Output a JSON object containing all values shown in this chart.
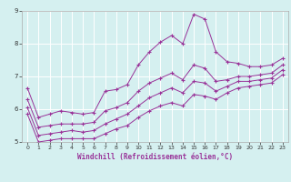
{
  "xlabel": "Windchill (Refroidissement éolien,°C)",
  "bg_color": "#d5f0f0",
  "line_color": "#993399",
  "grid_color": "#ffffff",
  "xlim": [
    -0.5,
    23.5
  ],
  "ylim": [
    5,
    9
  ],
  "yticks": [
    5,
    6,
    7,
    8,
    9
  ],
  "xticks": [
    0,
    1,
    2,
    3,
    4,
    5,
    6,
    7,
    8,
    9,
    10,
    11,
    12,
    13,
    14,
    15,
    16,
    17,
    18,
    19,
    20,
    21,
    22,
    23
  ],
  "lines": [
    {
      "x": [
        0,
        1,
        2,
        3,
        4,
        5,
        6,
        7,
        8,
        9,
        10,
        11,
        12,
        13,
        14,
        15,
        16,
        17,
        18,
        19,
        20,
        21,
        22,
        23
      ],
      "y": [
        6.65,
        5.75,
        5.85,
        5.95,
        5.9,
        5.85,
        5.9,
        6.55,
        6.6,
        6.75,
        7.35,
        7.75,
        8.05,
        8.25,
        8.0,
        8.9,
        8.75,
        7.75,
        7.45,
        7.4,
        7.3,
        7.3,
        7.35,
        7.55
      ]
    },
    {
      "x": [
        0,
        1,
        2,
        3,
        4,
        5,
        6,
        7,
        8,
        9,
        10,
        11,
        12,
        13,
        14,
        15,
        16,
        17,
        18,
        19,
        20,
        21,
        22,
        23
      ],
      "y": [
        6.3,
        5.45,
        5.5,
        5.55,
        5.55,
        5.55,
        5.6,
        5.95,
        6.05,
        6.2,
        6.55,
        6.8,
        6.95,
        7.1,
        6.9,
        7.35,
        7.25,
        6.85,
        6.9,
        7.0,
        7.0,
        7.05,
        7.1,
        7.35
      ]
    },
    {
      "x": [
        0,
        1,
        2,
        3,
        4,
        5,
        6,
        7,
        8,
        9,
        10,
        11,
        12,
        13,
        14,
        15,
        16,
        17,
        18,
        19,
        20,
        21,
        22,
        23
      ],
      "y": [
        6.05,
        5.2,
        5.25,
        5.3,
        5.35,
        5.3,
        5.35,
        5.55,
        5.7,
        5.85,
        6.1,
        6.35,
        6.5,
        6.65,
        6.5,
        6.85,
        6.8,
        6.55,
        6.7,
        6.85,
        6.85,
        6.9,
        6.95,
        7.2
      ]
    },
    {
      "x": [
        0,
        1,
        2,
        3,
        4,
        5,
        6,
        7,
        8,
        9,
        10,
        11,
        12,
        13,
        14,
        15,
        16,
        17,
        18,
        19,
        20,
        21,
        22,
        23
      ],
      "y": [
        5.85,
        5.0,
        5.05,
        5.1,
        5.1,
        5.1,
        5.1,
        5.25,
        5.4,
        5.5,
        5.75,
        5.95,
        6.1,
        6.2,
        6.1,
        6.45,
        6.4,
        6.3,
        6.5,
        6.65,
        6.7,
        6.75,
        6.8,
        7.05
      ]
    }
  ]
}
